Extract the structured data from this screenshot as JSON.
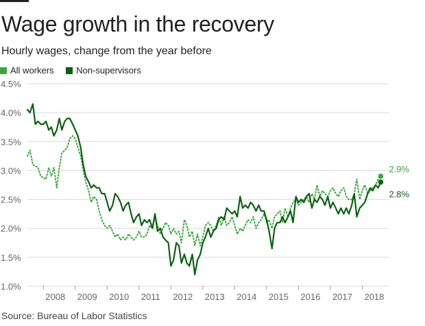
{
  "title": "Wage growth in the recovery",
  "subtitle": "Hourly wages, change from the year before",
  "source": "Source: Bureau of Labor Statistics",
  "colors": {
    "all_workers": "#3aa83a",
    "non_supervisors": "#0b6112",
    "grid": "#d9d9d9",
    "axis_text": "#666666"
  },
  "legend": [
    {
      "label": "All workers",
      "color": "#3aa83a"
    },
    {
      "label": "Non-supervisors",
      "color": "#0b6112"
    }
  ],
  "chart_data": {
    "type": "line",
    "title": "Wage growth in the recovery",
    "ylabel": "Hourly wages, change from the year before",
    "xlabel": "",
    "ylim": [
      1.0,
      4.5
    ],
    "xlim": [
      2007.5,
      2018.85
    ],
    "y_ticks": [
      {
        "value": 1.0,
        "label": "1.0%"
      },
      {
        "value": 1.5,
        "label": "1.5%"
      },
      {
        "value": 2.0,
        "label": "2.0%"
      },
      {
        "value": 2.5,
        "label": "2.5%"
      },
      {
        "value": 3.0,
        "label": "3.0%"
      },
      {
        "value": 3.5,
        "label": "3.5%"
      },
      {
        "value": 4.0,
        "label": "4.0%"
      },
      {
        "value": 4.5,
        "label": "4.5%"
      }
    ],
    "x_ticks": [
      {
        "value": 2008,
        "label": "2008"
      },
      {
        "value": 2009,
        "label": "2009"
      },
      {
        "value": 2010,
        "label": "2010"
      },
      {
        "value": 2011,
        "label": "2011"
      },
      {
        "value": 2012,
        "label": "2012"
      },
      {
        "value": 2013,
        "label": "2013"
      },
      {
        "value": 2014,
        "label": "2014"
      },
      {
        "value": 2015,
        "label": "2015"
      },
      {
        "value": 2016,
        "label": "2016"
      },
      {
        "value": 2017,
        "label": "2017"
      },
      {
        "value": 2018,
        "label": "2018"
      }
    ],
    "series": [
      {
        "name": "All workers",
        "style": "dotted",
        "color": "#3aa83a",
        "end_label": "2.9%",
        "points": [
          [
            2007.5,
            3.25
          ],
          [
            2007.58,
            3.35
          ],
          [
            2007.67,
            3.1
          ],
          [
            2007.83,
            3.05
          ],
          [
            2007.92,
            2.9
          ],
          [
            2008.08,
            2.85
          ],
          [
            2008.17,
            3.05
          ],
          [
            2008.25,
            2.9
          ],
          [
            2008.33,
            3.05
          ],
          [
            2008.42,
            2.7
          ],
          [
            2008.5,
            3.05
          ],
          [
            2008.58,
            3.3
          ],
          [
            2008.67,
            3.35
          ],
          [
            2008.75,
            3.4
          ],
          [
            2008.83,
            3.55
          ],
          [
            2008.92,
            3.6
          ],
          [
            2009.0,
            3.55
          ],
          [
            2009.08,
            3.4
          ],
          [
            2009.17,
            3.25
          ],
          [
            2009.25,
            3.0
          ],
          [
            2009.33,
            2.8
          ],
          [
            2009.42,
            2.65
          ],
          [
            2009.5,
            2.45
          ],
          [
            2009.58,
            2.55
          ],
          [
            2009.67,
            2.5
          ],
          [
            2009.75,
            2.3
          ],
          [
            2009.83,
            2.15
          ],
          [
            2009.92,
            2.05
          ],
          [
            2010.0,
            2.0
          ],
          [
            2010.08,
            2.05
          ],
          [
            2010.17,
            1.95
          ],
          [
            2010.25,
            1.85
          ],
          [
            2010.33,
            1.9
          ],
          [
            2010.42,
            1.8
          ],
          [
            2010.5,
            1.85
          ],
          [
            2010.58,
            1.8
          ],
          [
            2010.67,
            1.9
          ],
          [
            2010.75,
            1.85
          ],
          [
            2010.83,
            1.8
          ],
          [
            2010.92,
            1.85
          ],
          [
            2011.0,
            1.95
          ],
          [
            2011.08,
            1.85
          ],
          [
            2011.17,
            1.85
          ],
          [
            2011.25,
            1.9
          ],
          [
            2011.33,
            2.05
          ],
          [
            2011.42,
            2.0
          ],
          [
            2011.5,
            2.2
          ],
          [
            2011.58,
            2.05
          ],
          [
            2011.67,
            1.9
          ],
          [
            2011.75,
            2.0
          ],
          [
            2011.83,
            2.1
          ],
          [
            2011.92,
            2.05
          ],
          [
            2012.0,
            1.9
          ],
          [
            2012.08,
            2.0
          ],
          [
            2012.17,
            1.9
          ],
          [
            2012.25,
            1.95
          ],
          [
            2012.33,
            1.75
          ],
          [
            2012.42,
            2.15
          ],
          [
            2012.5,
            2.05
          ],
          [
            2012.58,
            1.85
          ],
          [
            2012.67,
            1.95
          ],
          [
            2012.75,
            1.7
          ],
          [
            2012.83,
            1.9
          ],
          [
            2012.92,
            1.7
          ],
          [
            2013.0,
            1.85
          ],
          [
            2013.08,
            2.05
          ],
          [
            2013.17,
            2.1
          ],
          [
            2013.25,
            2.05
          ],
          [
            2013.33,
            1.95
          ],
          [
            2013.42,
            2.05
          ],
          [
            2013.5,
            2.2
          ],
          [
            2013.58,
            2.05
          ],
          [
            2013.67,
            2.2
          ],
          [
            2013.75,
            2.05
          ],
          [
            2013.83,
            2.1
          ],
          [
            2013.92,
            2.2
          ],
          [
            2014.0,
            2.05
          ],
          [
            2014.08,
            1.9
          ],
          [
            2014.17,
            2.0
          ],
          [
            2014.25,
            1.95
          ],
          [
            2014.33,
            2.05
          ],
          [
            2014.42,
            2.15
          ],
          [
            2014.5,
            2.1
          ],
          [
            2014.58,
            2.2
          ],
          [
            2014.67,
            2.0
          ],
          [
            2014.75,
            2.1
          ],
          [
            2014.83,
            2.15
          ],
          [
            2014.92,
            2.25
          ],
          [
            2015.0,
            2.1
          ],
          [
            2015.08,
            2.15
          ],
          [
            2015.17,
            2.0
          ],
          [
            2015.25,
            2.2
          ],
          [
            2015.33,
            2.25
          ],
          [
            2015.42,
            2.3
          ],
          [
            2015.5,
            2.1
          ],
          [
            2015.58,
            2.35
          ],
          [
            2015.67,
            2.2
          ],
          [
            2015.75,
            2.35
          ],
          [
            2015.83,
            2.45
          ],
          [
            2015.92,
            2.5
          ],
          [
            2016.0,
            2.4
          ],
          [
            2016.08,
            2.45
          ],
          [
            2016.17,
            2.5
          ],
          [
            2016.25,
            2.55
          ],
          [
            2016.33,
            2.45
          ],
          [
            2016.42,
            2.6
          ],
          [
            2016.5,
            2.5
          ],
          [
            2016.58,
            2.75
          ],
          [
            2016.67,
            2.55
          ],
          [
            2016.75,
            2.65
          ],
          [
            2016.83,
            2.6
          ],
          [
            2016.92,
            2.55
          ],
          [
            2017.0,
            2.65
          ],
          [
            2017.08,
            2.7
          ],
          [
            2017.17,
            2.6
          ],
          [
            2017.25,
            2.55
          ],
          [
            2017.33,
            2.65
          ],
          [
            2017.42,
            2.7
          ],
          [
            2017.5,
            2.55
          ],
          [
            2017.58,
            2.5
          ],
          [
            2017.67,
            2.5
          ],
          [
            2017.75,
            2.6
          ],
          [
            2017.83,
            2.85
          ],
          [
            2017.92,
            2.5
          ],
          [
            2018.0,
            2.65
          ],
          [
            2018.08,
            2.75
          ],
          [
            2018.17,
            2.6
          ],
          [
            2018.25,
            2.65
          ],
          [
            2018.33,
            2.7
          ],
          [
            2018.42,
            2.75
          ],
          [
            2018.5,
            2.85
          ],
          [
            2018.58,
            2.9
          ]
        ]
      },
      {
        "name": "Non-supervisors",
        "style": "solid",
        "color": "#0b6112",
        "end_label": "2.8%",
        "points": [
          [
            2007.5,
            4.05
          ],
          [
            2007.58,
            4.0
          ],
          [
            2007.67,
            4.15
          ],
          [
            2007.75,
            3.8
          ],
          [
            2007.83,
            3.85
          ],
          [
            2007.92,
            3.8
          ],
          [
            2008.0,
            3.8
          ],
          [
            2008.08,
            3.85
          ],
          [
            2008.17,
            3.7
          ],
          [
            2008.25,
            3.75
          ],
          [
            2008.33,
            3.6
          ],
          [
            2008.42,
            3.7
          ],
          [
            2008.5,
            3.9
          ],
          [
            2008.58,
            3.7
          ],
          [
            2008.67,
            3.85
          ],
          [
            2008.75,
            3.9
          ],
          [
            2008.83,
            3.9
          ],
          [
            2008.92,
            3.8
          ],
          [
            2009.0,
            3.7
          ],
          [
            2009.08,
            3.6
          ],
          [
            2009.17,
            3.4
          ],
          [
            2009.25,
            3.1
          ],
          [
            2009.33,
            2.9
          ],
          [
            2009.42,
            2.8
          ],
          [
            2009.5,
            2.7
          ],
          [
            2009.58,
            2.75
          ],
          [
            2009.67,
            2.7
          ],
          [
            2009.75,
            2.7
          ],
          [
            2009.83,
            2.6
          ],
          [
            2009.92,
            2.6
          ],
          [
            2010.0,
            2.45
          ],
          [
            2010.08,
            2.3
          ],
          [
            2010.17,
            2.4
          ],
          [
            2010.25,
            2.6
          ],
          [
            2010.33,
            2.55
          ],
          [
            2010.42,
            2.45
          ],
          [
            2010.5,
            2.3
          ],
          [
            2010.58,
            2.4
          ],
          [
            2010.67,
            2.45
          ],
          [
            2010.75,
            2.25
          ],
          [
            2010.83,
            2.1
          ],
          [
            2010.92,
            2.2
          ],
          [
            2011.0,
            2.25
          ],
          [
            2011.08,
            2.05
          ],
          [
            2011.17,
            2.15
          ],
          [
            2011.25,
            2.1
          ],
          [
            2011.33,
            2.15
          ],
          [
            2011.42,
            2.0
          ],
          [
            2011.5,
            2.25
          ],
          [
            2011.58,
            1.95
          ],
          [
            2011.67,
            2.0
          ],
          [
            2011.75,
            1.85
          ],
          [
            2011.83,
            1.8
          ],
          [
            2011.92,
            1.75
          ],
          [
            2012.0,
            1.35
          ],
          [
            2012.08,
            1.45
          ],
          [
            2012.17,
            1.75
          ],
          [
            2012.25,
            1.7
          ],
          [
            2012.33,
            1.4
          ],
          [
            2012.42,
            1.55
          ],
          [
            2012.5,
            1.4
          ],
          [
            2012.58,
            1.35
          ],
          [
            2012.67,
            1.55
          ],
          [
            2012.75,
            1.2
          ],
          [
            2012.83,
            1.45
          ],
          [
            2012.92,
            1.55
          ],
          [
            2013.0,
            1.75
          ],
          [
            2013.08,
            1.85
          ],
          [
            2013.17,
            2.0
          ],
          [
            2013.25,
            1.85
          ],
          [
            2013.33,
            1.95
          ],
          [
            2013.42,
            2.0
          ],
          [
            2013.5,
            2.15
          ],
          [
            2013.58,
            2.2
          ],
          [
            2013.67,
            2.15
          ],
          [
            2013.75,
            2.35
          ],
          [
            2013.83,
            2.3
          ],
          [
            2013.92,
            2.25
          ],
          [
            2014.0,
            2.3
          ],
          [
            2014.08,
            2.2
          ],
          [
            2014.17,
            2.55
          ],
          [
            2014.25,
            2.35
          ],
          [
            2014.33,
            2.4
          ],
          [
            2014.42,
            2.35
          ],
          [
            2014.5,
            2.45
          ],
          [
            2014.58,
            2.4
          ],
          [
            2014.67,
            2.3
          ],
          [
            2014.75,
            2.4
          ],
          [
            2014.83,
            2.3
          ],
          [
            2014.92,
            2.3
          ],
          [
            2015.0,
            2.15
          ],
          [
            2015.08,
            1.95
          ],
          [
            2015.17,
            1.65
          ],
          [
            2015.25,
            2.0
          ],
          [
            2015.33,
            2.1
          ],
          [
            2015.42,
            2.1
          ],
          [
            2015.5,
            2.2
          ],
          [
            2015.58,
            2.1
          ],
          [
            2015.67,
            2.2
          ],
          [
            2015.75,
            2.3
          ],
          [
            2015.83,
            2.1
          ],
          [
            2015.92,
            2.55
          ],
          [
            2016.0,
            2.45
          ],
          [
            2016.08,
            2.5
          ],
          [
            2016.17,
            2.45
          ],
          [
            2016.25,
            2.55
          ],
          [
            2016.33,
            2.6
          ],
          [
            2016.42,
            2.35
          ],
          [
            2016.5,
            2.5
          ],
          [
            2016.58,
            2.45
          ],
          [
            2016.67,
            2.55
          ],
          [
            2016.75,
            2.5
          ],
          [
            2016.83,
            2.4
          ],
          [
            2016.92,
            2.55
          ],
          [
            2017.0,
            2.35
          ],
          [
            2017.08,
            2.45
          ],
          [
            2017.17,
            2.35
          ],
          [
            2017.25,
            2.25
          ],
          [
            2017.33,
            2.35
          ],
          [
            2017.42,
            2.25
          ],
          [
            2017.5,
            2.35
          ],
          [
            2017.58,
            2.25
          ],
          [
            2017.67,
            2.4
          ],
          [
            2017.75,
            2.6
          ],
          [
            2017.83,
            2.2
          ],
          [
            2017.92,
            2.35
          ],
          [
            2018.0,
            2.4
          ],
          [
            2018.08,
            2.45
          ],
          [
            2018.17,
            2.6
          ],
          [
            2018.25,
            2.7
          ],
          [
            2018.33,
            2.65
          ],
          [
            2018.42,
            2.75
          ],
          [
            2018.5,
            2.7
          ],
          [
            2018.58,
            2.8
          ]
        ]
      }
    ]
  }
}
